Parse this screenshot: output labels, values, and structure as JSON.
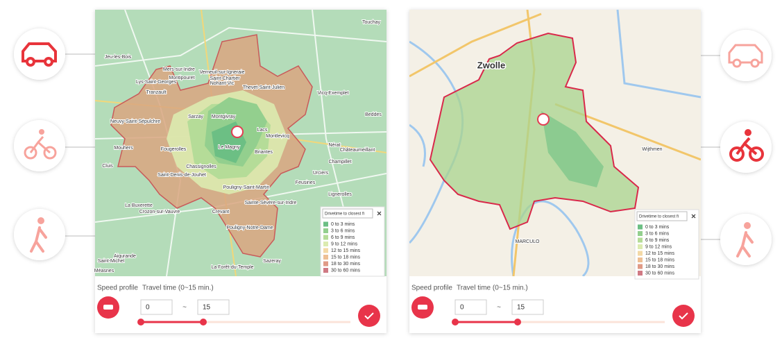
{
  "panels": [
    {
      "map_labels": [
        "Jeu-les-Bois",
        "Mers-sur-Indre",
        "Montipouret",
        "Verneuil-sur-Igneraie",
        "Saint-Chartier",
        "Nohant-Vic",
        "Lys-Saint-Georges",
        "Tranzault",
        "Thevet-Saint-Julien",
        "Vicq-Exemplet",
        "Neuvy-Saint-Sépulchre",
        "Sarzay",
        "Montgivray",
        "Lacs",
        "Fougerolles",
        "Le Magny",
        "Briantes",
        "Montlevicq",
        "Mouhers",
        "Chassignolles",
        "Saint-Denis-de-Jouhet",
        "Pouligny-Saint-Martin",
        "Cluis",
        "La Buxerette",
        "Crozon-sur-Vauvre",
        "Crevant",
        "Sainte-Sévère-sur-Indre",
        "Pouligny-Notre-Dame",
        "Aigurande",
        "Sazeray",
        "La Forêt-du-Temple",
        "Saint-Michel",
        "Méasnes",
        "Feusines",
        "Urciers",
        "Champillet",
        "Nérat",
        "Beddes",
        "Touchay",
        "Lignerolles",
        "Châteaumeillant"
      ],
      "legend": {
        "dropdown": "Drivetime to closest fi",
        "items": [
          {
            "label": "0 to 3 mins",
            "color": "#6cbf84"
          },
          {
            "label": "3 to 6 mins",
            "color": "#93cf8e"
          },
          {
            "label": "6 to 9 mins",
            "color": "#b5dc98"
          },
          {
            "label": "9 to 12 mins",
            "color": "#dcebb0"
          },
          {
            "label": "12 to 15 mins",
            "color": "#f3d9a6"
          },
          {
            "label": "15 to 18 mins",
            "color": "#eebf94"
          },
          {
            "label": "18 to 30 mins",
            "color": "#e09a86"
          },
          {
            "label": "30 to 60 mins",
            "color": "#d07a84"
          }
        ]
      },
      "speed_profile": "Speed profile",
      "travel_time": "Travel time (0~15 min.)",
      "from": "0",
      "separator": "~",
      "to": "15"
    },
    {
      "map_labels": [
        "Zwolle",
        "Wijthmen",
        "MARCULO"
      ],
      "legend": {
        "dropdown": "Drivetime to closest fi",
        "items": [
          {
            "label": "0 to 3 mins",
            "color": "#6cbf84"
          },
          {
            "label": "3 to 6 mins",
            "color": "#93cf8e"
          },
          {
            "label": "6 to 9 mins",
            "color": "#b5dc98"
          },
          {
            "label": "9 to 12 mins",
            "color": "#dcebb0"
          },
          {
            "label": "12 to 15 mins",
            "color": "#f3d9a6"
          },
          {
            "label": "15 to 18 mins",
            "color": "#eebf94"
          },
          {
            "label": "18 to 30 mins",
            "color": "#e09a86"
          },
          {
            "label": "30 to 60 mins",
            "color": "#d07a84"
          }
        ]
      },
      "speed_profile": "Speed profile",
      "travel_time": "Travel time (0~15 min.)",
      "from": "0",
      "separator": "~",
      "to": "15"
    }
  ]
}
